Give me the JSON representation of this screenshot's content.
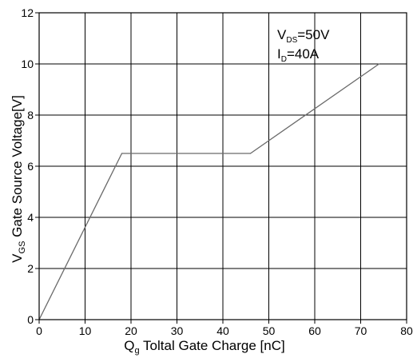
{
  "chart_data": {
    "type": "line",
    "x": [
      0,
      18,
      46,
      74
    ],
    "series": [
      {
        "values": [
          0,
          6.5,
          6.5,
          10
        ]
      }
    ],
    "xlim": [
      0,
      80
    ],
    "ylim": [
      0,
      12
    ],
    "x_ticks": [
      "0",
      "10",
      "20",
      "30",
      "40",
      "50",
      "60",
      "70",
      "80"
    ],
    "y_ticks": [
      "0",
      "2",
      "4",
      "6",
      "8",
      "10",
      "12"
    ],
    "xlabel": {
      "main": "Q",
      "sub": "g",
      "rest": " Toltal Gate Charge [nC]"
    },
    "ylabel": {
      "main": "V",
      "sub": "GS",
      "rest": " Gate Source Voltage[V]"
    },
    "annotations": [
      {
        "main": "V",
        "sub": "DS",
        "rest": "=50V"
      },
      {
        "main": "I",
        "sub": "D",
        "rest": "=40A"
      }
    ],
    "grid": true,
    "colors": {
      "line": "#6a6a6a",
      "grid": "#000000",
      "axes": "#000000"
    }
  }
}
